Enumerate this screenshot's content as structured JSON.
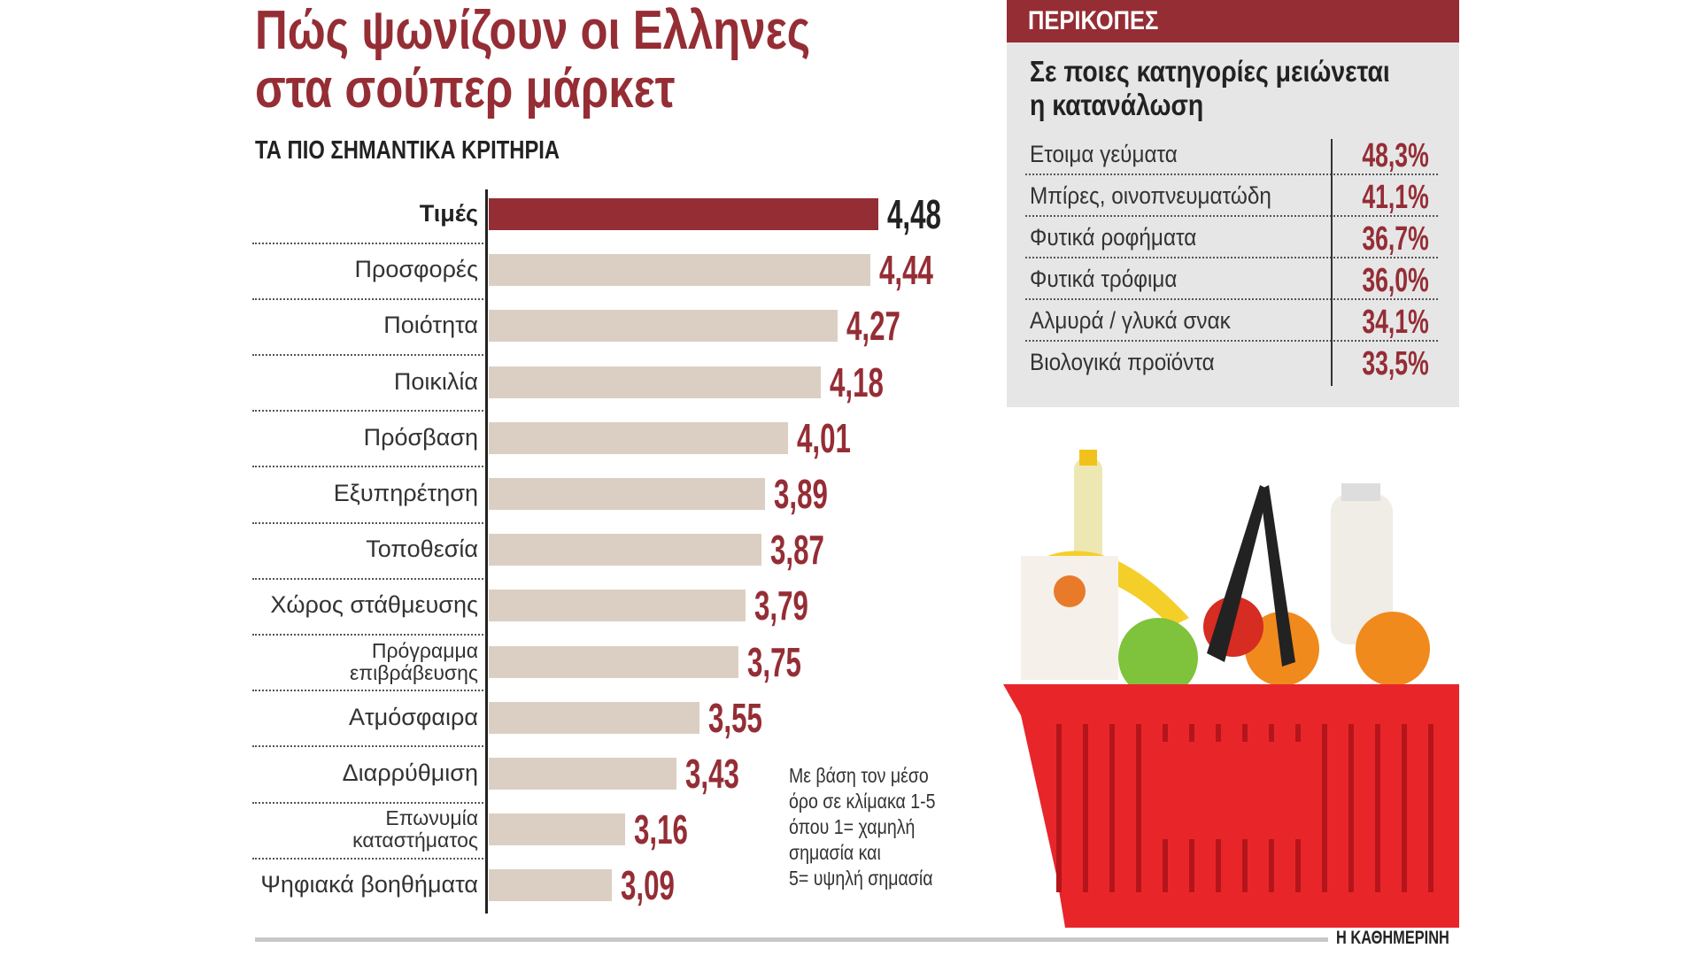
{
  "title": [
    "Πώς ψωνίζουν οι Ελληνες",
    "στα σούπερ μάρκετ"
  ],
  "subtitle": "ΤΑ ΠΙΟ ΣΗΜΑΝΤΙΚΑ ΚΡΙΤΗΡΙΑ",
  "chart_data": {
    "type": "bar",
    "orientation": "horizontal",
    "title": "ΤΑ ΠΙΟ ΣΗΜΑΝΤΙΚΑ ΚΡΙΤΗΡΙΑ",
    "categories": [
      "Τιμές",
      "Προσφορές",
      "Ποιότητα",
      "Ποικιλία",
      "Πρόσβαση",
      "Εξυπηρέτηση",
      "Τοποθεσία",
      "Χώρος στάθμευσης",
      "Πρόγραμμα επιβράβευσης",
      "Ατμόσφαιρα",
      "Διαρρύθμιση",
      "Επωνυμία καταστήματος",
      "Ψηφιακά βοηθήματα"
    ],
    "label_lines": [
      [
        "Τιμές"
      ],
      [
        "Προσφορές"
      ],
      [
        "Ποιότητα"
      ],
      [
        "Ποικιλία"
      ],
      [
        "Πρόσβαση"
      ],
      [
        "Εξυπηρέτηση"
      ],
      [
        "Τοποθεσία"
      ],
      [
        "Χώρος στάθμευσης"
      ],
      [
        "Πρόγραμμα",
        "επιβράβευσης"
      ],
      [
        "Ατμόσφαιρα"
      ],
      [
        "Διαρρύθμιση"
      ],
      [
        "Επωνυμία",
        "καταστήματος"
      ],
      [
        "Ψηφιακά βοηθήματα"
      ]
    ],
    "values": [
      4.48,
      4.44,
      4.27,
      4.18,
      4.01,
      3.89,
      3.87,
      3.79,
      3.75,
      3.55,
      3.43,
      3.16,
      3.09
    ],
    "value_labels": [
      "4,48",
      "4,44",
      "4,27",
      "4,18",
      "4,01",
      "3,89",
      "3,87",
      "3,79",
      "3,75",
      "3,55",
      "3,43",
      "3,16",
      "3,09"
    ],
    "highlight_index": 0,
    "xlim": [
      2.45,
      5
    ],
    "grid": false,
    "colors": {
      "highlight": "#952d35",
      "bar": "#dbcfc3",
      "value": "#952d35",
      "highlight_value": "#222222"
    }
  },
  "note": [
    "Με βάση τον μέσο",
    "όρο σε κλίμακα 1-5",
    "όπου 1= χαμηλή",
    "σημασία και",
    "5= υψηλή σημασία"
  ],
  "panel": {
    "header": "ΠΕΡΙΚΟΠΕΣ",
    "subtitle": [
      "Σε ποιες κατηγορίες μειώνεται",
      "η κατανάλωση"
    ],
    "rows": [
      {
        "label": "Ετοιμα γεύματα",
        "value": "48,3%"
      },
      {
        "label": "Μπίρες, οινοπνευματώδη",
        "value": "41,1%"
      },
      {
        "label": "Φυτικά ροφήματα",
        "value": "36,7%"
      },
      {
        "label": "Φυτικά τρόφιμα",
        "value": "36,0%"
      },
      {
        "label": "Αλμυρά / γλυκά σνακ",
        "value": "34,1%"
      },
      {
        "label": "Βιολογικά προϊόντα",
        "value": "33,5%"
      }
    ]
  },
  "brand": "Η ΚΑΘΗΜΕΡΙΝΗ"
}
